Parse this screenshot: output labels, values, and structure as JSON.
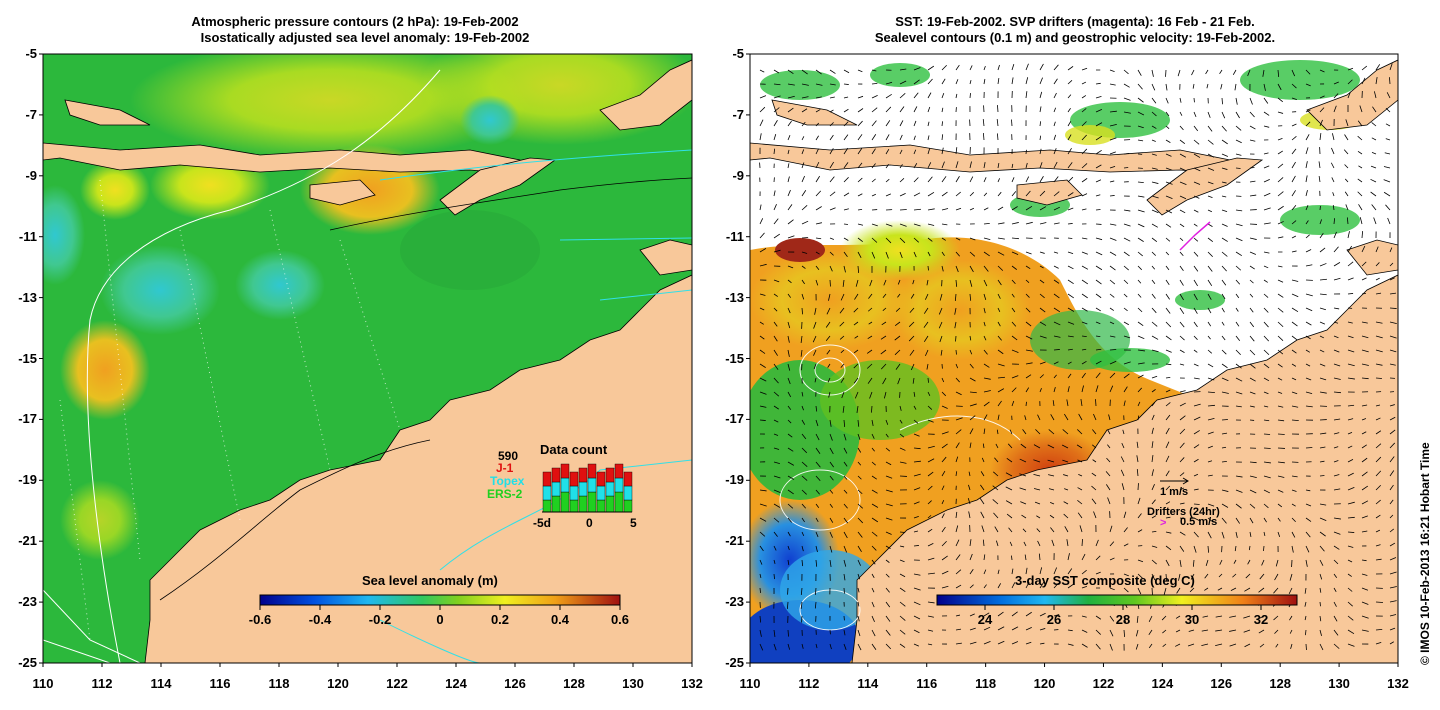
{
  "left_panel": {
    "title_line1": "Atmospheric pressure contours (2 hPa): 19-Feb-2002",
    "title_line2": "Isostatically adjusted sea level anomaly: 19-Feb-2002",
    "colorbar_title": "Sea level anomaly (m)",
    "colorbar_ticks": [
      "-0.6",
      "-0.4",
      "-0.2",
      "0",
      "0.2",
      "0.4",
      "0.6"
    ],
    "data_count": {
      "title": "Data count",
      "max_label": "590",
      "satellites": [
        {
          "name": "J-1",
          "color": "#e01010"
        },
        {
          "name": "Topex",
          "color": "#20e0e8"
        },
        {
          "name": "ERS-2",
          "color": "#20d020"
        }
      ],
      "xticks": [
        "-5d",
        "0",
        "5"
      ]
    }
  },
  "right_panel": {
    "title_line1": "SST: 19-Feb-2002. SVP drifters (magenta): 16 Feb - 21 Feb.",
    "title_line2": "Sealevel contours (0.1 m) and geostrophic velocity: 19-Feb-2002.",
    "colorbar_title": "3-day SST composite (deg C)",
    "colorbar_ticks": [
      "24",
      "26",
      "28",
      "30",
      "32"
    ],
    "legend_velocity": "1 m/s",
    "legend_drifters": "Drifters (24hr)",
    "legend_drifter_speed": "0.5 m/s"
  },
  "axes": {
    "lat_ticks": [
      "-5",
      "-7",
      "-9",
      "-11",
      "-13",
      "-15",
      "-17",
      "-19",
      "-21",
      "-23",
      "-25"
    ],
    "lon_ticks": [
      "110",
      "112",
      "114",
      "116",
      "118",
      "120",
      "122",
      "124",
      "126",
      "128",
      "130",
      "132"
    ]
  },
  "credit": "© IMOS 10-Feb-2013 16:21 Hobart Time",
  "colors": {
    "land": "#f8c89a",
    "sea_green": "#2cb83c",
    "sst_orange": "#f0a020"
  }
}
